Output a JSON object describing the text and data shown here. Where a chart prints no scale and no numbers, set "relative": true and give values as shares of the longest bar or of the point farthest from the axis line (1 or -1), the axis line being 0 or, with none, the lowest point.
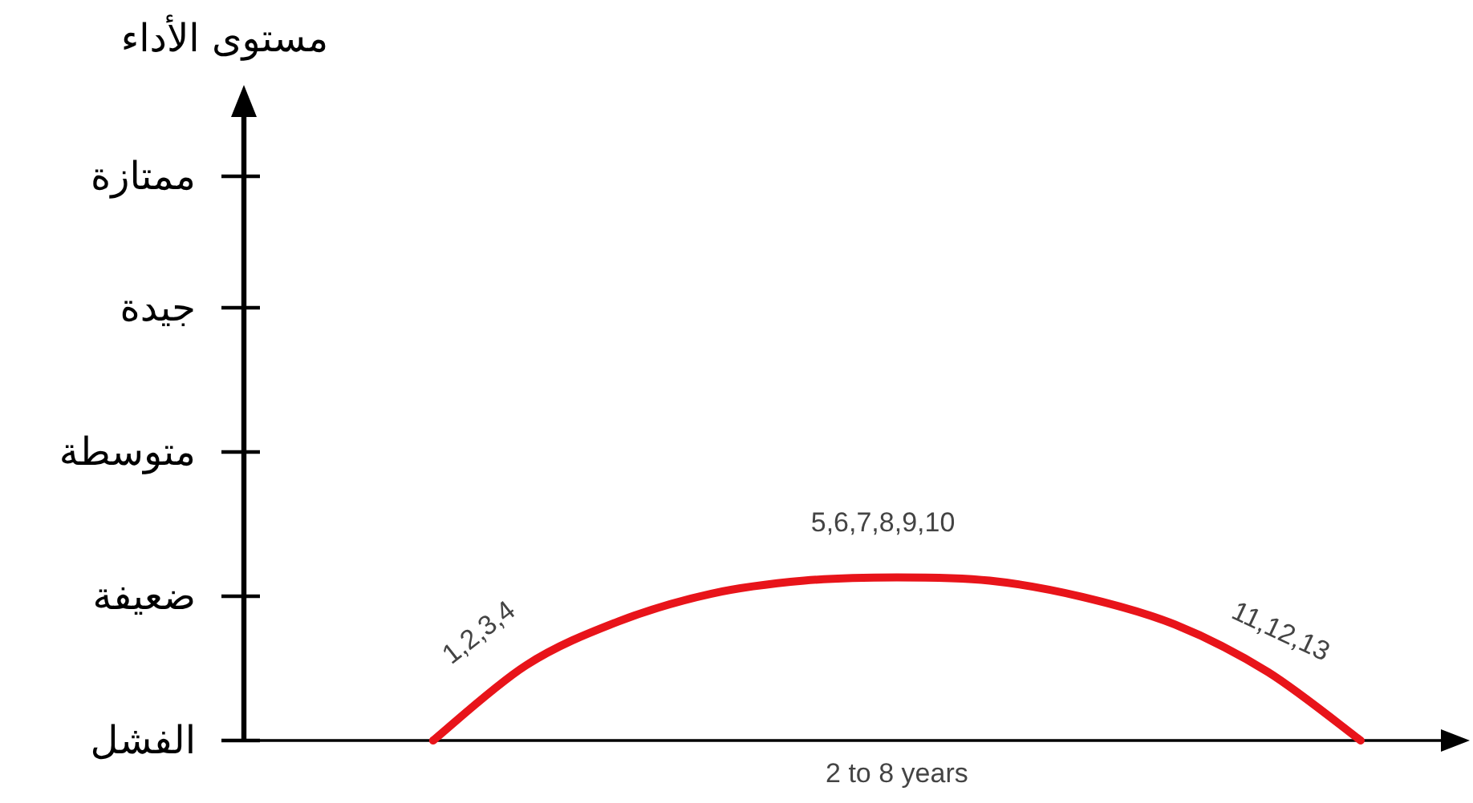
{
  "chart_data": {
    "type": "line",
    "relative": true,
    "xlabel": "2 to 8 years",
    "categories": [
      null,
      null,
      null,
      null,
      null,
      null,
      null,
      null,
      null,
      null,
      null
    ],
    "values": [
      0,
      0.46,
      0.73,
      0.9,
      0.98,
      1,
      0.98,
      0.88,
      0.71,
      0.42,
      0
    ],
    "color": "#e8141a",
    "marker": "none",
    "line_style": "solid",
    "annotations": [
      "مستوى الأداء",
      "ممتازة",
      "جيدة",
      "متوسطة",
      "ضعيفة",
      "الفشل",
      "1,2,3,4",
      "5,6,7,8,9,10",
      "11,12,13"
    ]
  }
}
